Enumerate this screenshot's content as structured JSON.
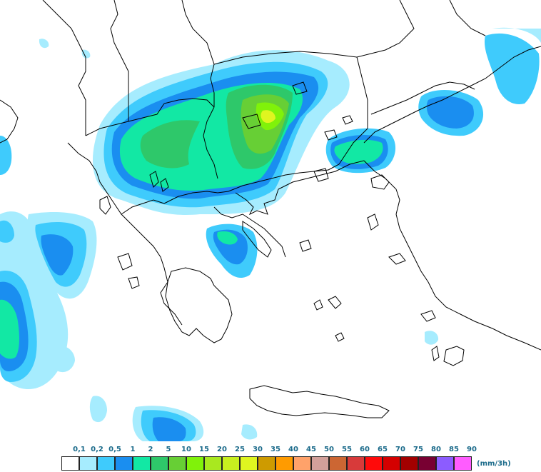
{
  "legend": {
    "unit": "(mm/3h)",
    "ticks": [
      "0,1",
      "0,2",
      "0,5",
      "1",
      "2",
      "5",
      "10",
      "15",
      "20",
      "25",
      "30",
      "35",
      "40",
      "45",
      "50",
      "55",
      "60",
      "65",
      "70",
      "75",
      "80",
      "85",
      "90"
    ],
    "colors": [
      "#ffffff",
      "#a6ecfe",
      "#3fcbfc",
      "#1a8ef0",
      "#12e8a4",
      "#2ec86a",
      "#67cf35",
      "#80f20a",
      "#a9e81f",
      "#c8ef1f",
      "#dff520",
      "#ce9b00",
      "#ff9b00",
      "#ffa26a",
      "#d2a09a",
      "#cc6633",
      "#d83a3a",
      "#ff0a0a",
      "#d40000",
      "#a20000",
      "#780032",
      "#8c5cff",
      "#ff5cff"
    ]
  },
  "map": {
    "land_color": "#ffffff",
    "border_color": "#000000",
    "precip_colors": {
      "light": "#a6ecfe",
      "low": "#3fcbfc",
      "mid": "#1a8ef0",
      "moderate": "#12e8a4",
      "heavy": "#2ec86a",
      "heavier": "#67cf35",
      "intense": "#80f20a",
      "peak": "#dff520"
    }
  }
}
